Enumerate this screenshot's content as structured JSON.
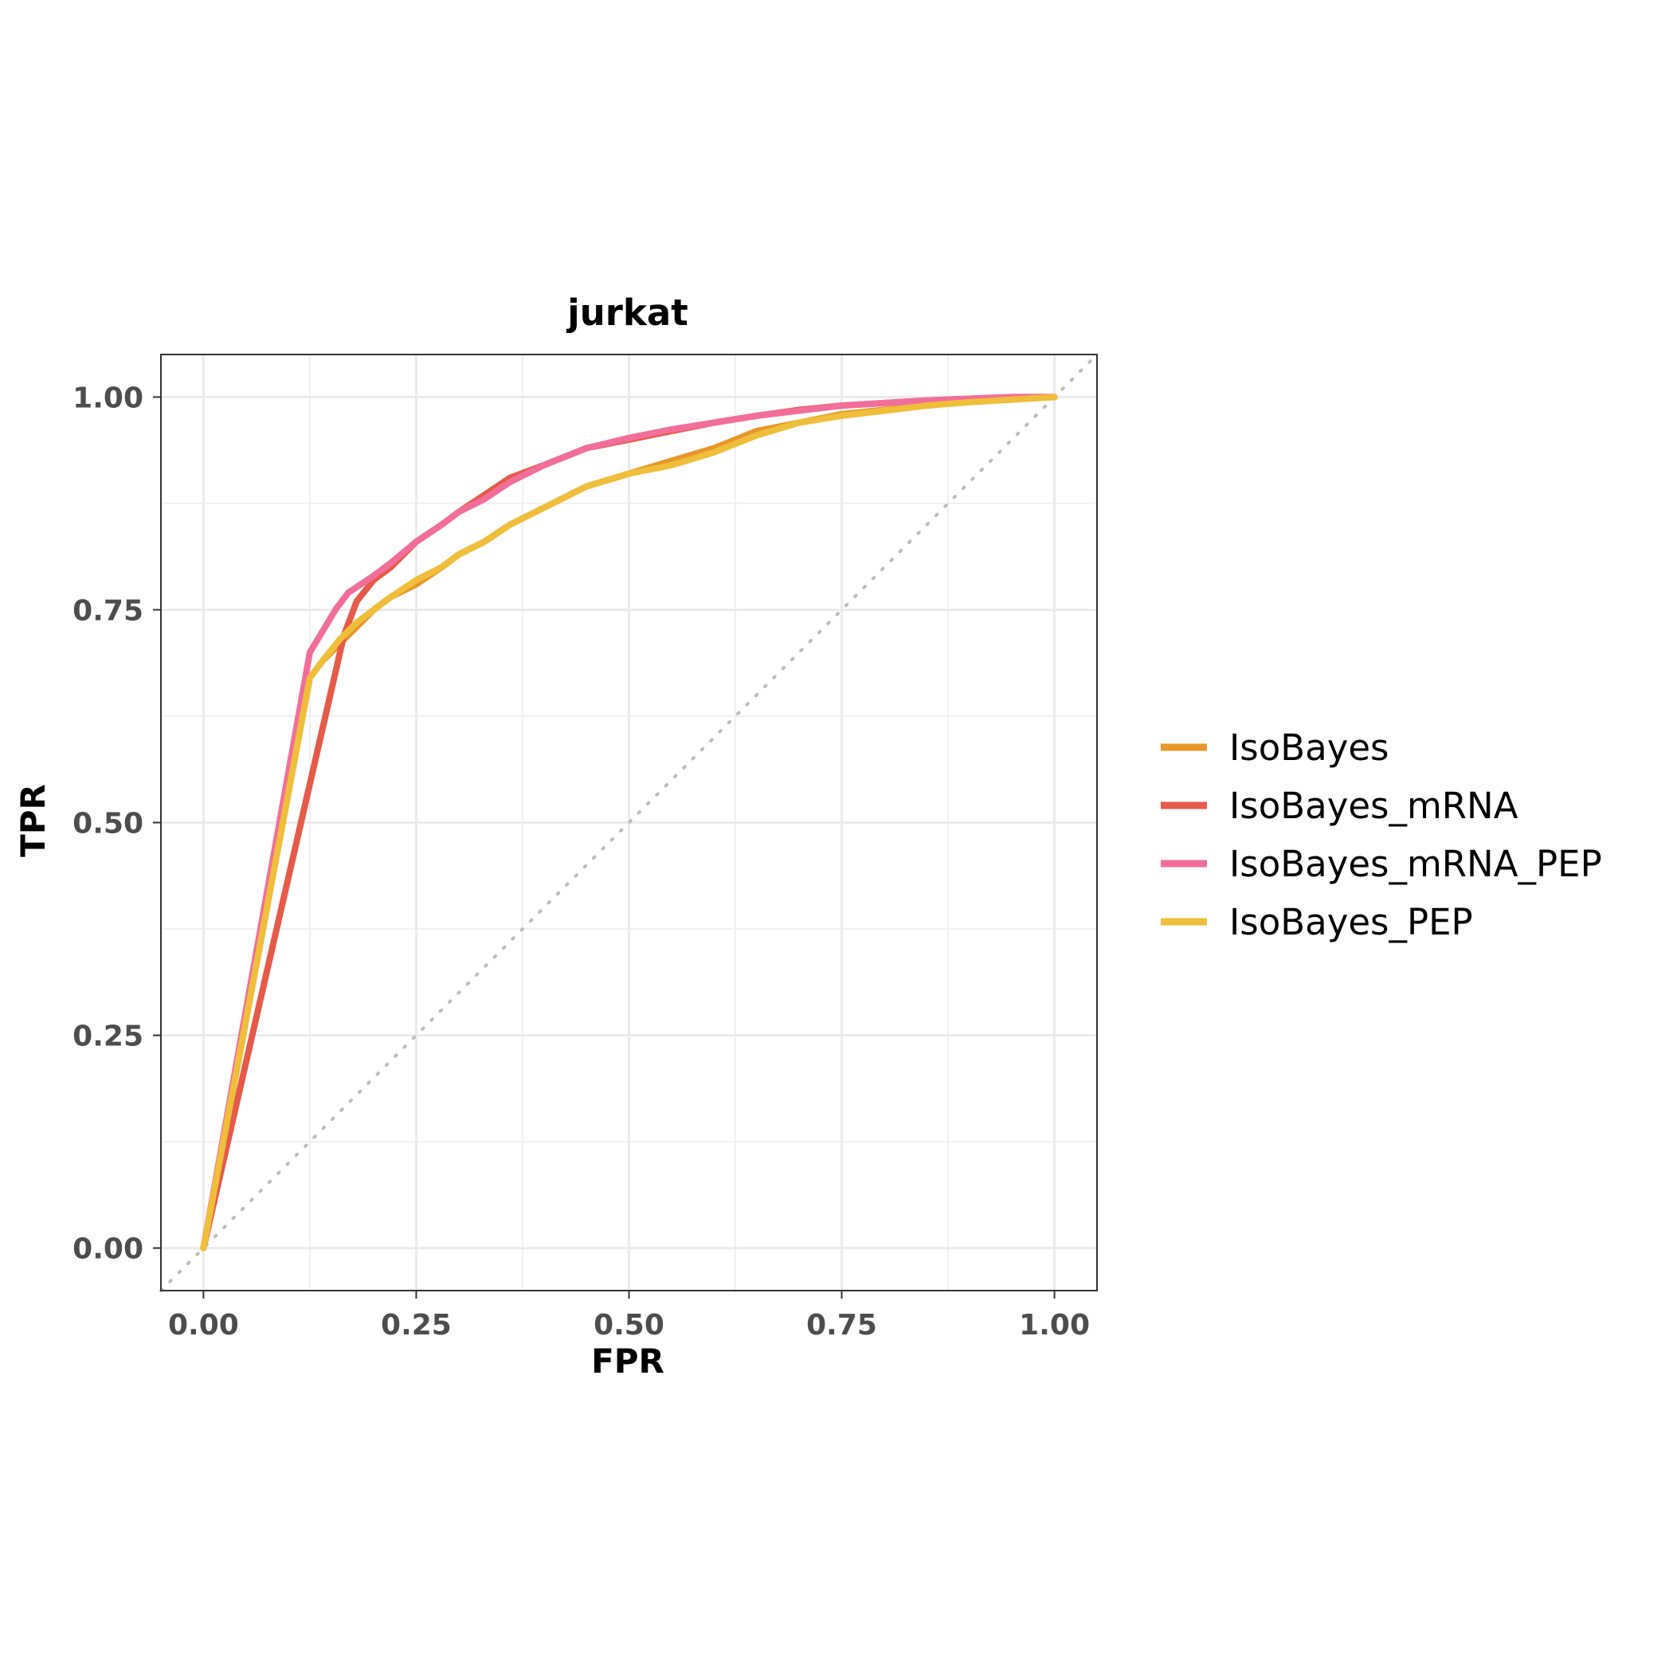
{
  "chart_data": {
    "type": "line",
    "title": "jurkat",
    "xlabel": "FPR",
    "ylabel": "TPR",
    "xlim": [
      -0.05,
      1.05
    ],
    "ylim": [
      -0.05,
      1.05
    ],
    "grid": true,
    "legend_position": "right",
    "xticks": [
      "0.00",
      "0.25",
      "0.50",
      "0.75",
      "1.00"
    ],
    "yticks": [
      "0.00",
      "0.25",
      "0.50",
      "0.75",
      "1.00"
    ],
    "reference_line": {
      "x": [
        -0.05,
        1.05
      ],
      "y": [
        -0.05,
        1.05
      ],
      "color": "#bdbdbd",
      "style": "dotted"
    },
    "series": [
      {
        "name": "IsoBayes",
        "color": "#E8962A",
        "x": [
          0,
          0.125,
          0.14,
          0.16,
          0.18,
          0.2,
          0.22,
          0.25,
          0.28,
          0.3,
          0.33,
          0.36,
          0.4,
          0.45,
          0.5,
          0.55,
          0.6,
          0.65,
          0.7,
          0.75,
          0.8,
          0.85,
          0.9,
          0.95,
          1.0
        ],
        "y": [
          0,
          0.67,
          0.69,
          0.71,
          0.73,
          0.75,
          0.765,
          0.78,
          0.8,
          0.815,
          0.83,
          0.85,
          0.87,
          0.895,
          0.91,
          0.925,
          0.94,
          0.96,
          0.97,
          0.98,
          0.985,
          0.99,
          0.995,
          0.998,
          1.0
        ]
      },
      {
        "name": "IsoBayes_mRNA",
        "color": "#E55A48",
        "x": [
          0,
          0.165,
          0.18,
          0.2,
          0.22,
          0.25,
          0.28,
          0.3,
          0.33,
          0.36,
          0.4,
          0.45,
          0.5,
          0.55,
          0.6,
          0.65,
          0.7,
          0.75,
          0.8,
          0.85,
          0.9,
          0.95,
          1.0
        ],
        "y": [
          0,
          0.72,
          0.76,
          0.785,
          0.8,
          0.83,
          0.85,
          0.865,
          0.885,
          0.905,
          0.92,
          0.94,
          0.95,
          0.96,
          0.97,
          0.978,
          0.985,
          0.99,
          0.993,
          0.996,
          0.998,
          1.0,
          1.0
        ]
      },
      {
        "name": "IsoBayes_mRNA_PEP",
        "color": "#F26E9A",
        "x": [
          0,
          0.125,
          0.14,
          0.155,
          0.17,
          0.2,
          0.22,
          0.25,
          0.28,
          0.3,
          0.33,
          0.36,
          0.4,
          0.45,
          0.5,
          0.55,
          0.6,
          0.65,
          0.7,
          0.75,
          0.8,
          0.85,
          0.9,
          0.95,
          1.0
        ],
        "y": [
          0,
          0.7,
          0.725,
          0.75,
          0.77,
          0.79,
          0.805,
          0.83,
          0.85,
          0.865,
          0.88,
          0.9,
          0.92,
          0.94,
          0.952,
          0.962,
          0.97,
          0.978,
          0.984,
          0.99,
          0.993,
          0.996,
          0.998,
          1.0,
          1.0
        ]
      },
      {
        "name": "IsoBayes_PEP",
        "color": "#EFBE3A",
        "x": [
          0,
          0.125,
          0.14,
          0.16,
          0.18,
          0.2,
          0.22,
          0.25,
          0.28,
          0.3,
          0.33,
          0.36,
          0.4,
          0.45,
          0.5,
          0.55,
          0.6,
          0.65,
          0.7,
          0.75,
          0.8,
          0.85,
          0.9,
          0.95,
          1.0
        ],
        "y": [
          0,
          0.67,
          0.69,
          0.715,
          0.735,
          0.75,
          0.765,
          0.785,
          0.8,
          0.815,
          0.83,
          0.85,
          0.87,
          0.895,
          0.91,
          0.92,
          0.935,
          0.955,
          0.97,
          0.978,
          0.984,
          0.99,
          0.994,
          0.997,
          1.0
        ]
      }
    ]
  }
}
